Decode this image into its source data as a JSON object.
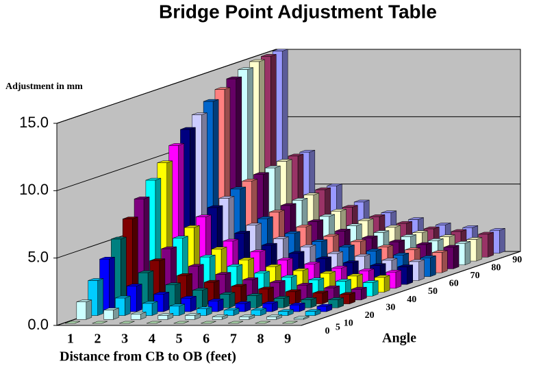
{
  "chart_data": {
    "type": "bar3d",
    "title": "Bridge Point Adjustment Table",
    "y_label": "Adjustment in mm",
    "x_label": "Distance from CB to OB (feet)",
    "depth_label": "Angle",
    "categories": [
      "1",
      "2",
      "3",
      "4",
      "5",
      "6",
      "7",
      "8",
      "9"
    ],
    "ylim": [
      0,
      15
    ],
    "yticks": [
      {
        "value": 0,
        "label": "0.0"
      },
      {
        "value": 5,
        "label": "5.0"
      },
      {
        "value": 10,
        "label": "10.0"
      },
      {
        "value": 15,
        "label": "15.0"
      }
    ],
    "grid": true,
    "series": [
      {
        "name": "0",
        "color": "#ccffcc",
        "values": [
          0,
          0,
          0,
          0,
          0,
          0,
          0,
          0,
          0
        ]
      },
      {
        "name": "5",
        "color": "#ccffff",
        "values": [
          1.3,
          0.7,
          0.4,
          0.3,
          0.3,
          0.2,
          0.2,
          0.2,
          0.1
        ]
      },
      {
        "name": "10",
        "color": "#00ccff",
        "values": [
          2.6,
          1.3,
          0.9,
          0.7,
          0.5,
          0.4,
          0.4,
          0.3,
          0.3
        ]
      },
      {
        "name": null,
        "color": "#0000ff",
        "values": [
          3.9,
          1.9,
          1.3,
          1.0,
          0.8,
          0.6,
          0.6,
          0.5,
          0.4
        ]
      },
      {
        "name": "20",
        "color": "#008080",
        "values": [
          5.1,
          2.6,
          1.7,
          1.3,
          1.0,
          0.9,
          0.7,
          0.6,
          0.6
        ]
      },
      {
        "name": null,
        "color": "#800000",
        "values": [
          6.3,
          3.2,
          2.1,
          1.6,
          1.3,
          1.1,
          0.9,
          0.8,
          0.7
        ]
      },
      {
        "name": "30",
        "color": "#800080",
        "values": [
          7.5,
          3.8,
          2.5,
          1.9,
          1.5,
          1.3,
          1.1,
          0.9,
          0.8
        ]
      },
      {
        "name": null,
        "color": "#00ffff",
        "values": [
          8.6,
          4.3,
          2.9,
          2.2,
          1.7,
          1.4,
          1.2,
          1.1,
          1.0
        ]
      },
      {
        "name": "40",
        "color": "#ffff00",
        "values": [
          9.6,
          4.8,
          3.2,
          2.4,
          1.9,
          1.6,
          1.4,
          1.2,
          1.1
        ]
      },
      {
        "name": null,
        "color": "#ff00ff",
        "values": [
          10.6,
          5.3,
          3.5,
          2.7,
          2.1,
          1.8,
          1.5,
          1.3,
          1.2
        ]
      },
      {
        "name": "50",
        "color": "#000080",
        "values": [
          11.5,
          5.7,
          3.8,
          2.9,
          2.3,
          1.9,
          1.6,
          1.4,
          1.3
        ]
      },
      {
        "name": null,
        "color": "#ccccff",
        "values": [
          12.3,
          6.1,
          4.1,
          3.1,
          2.5,
          2.0,
          1.8,
          1.5,
          1.4
        ]
      },
      {
        "name": "60",
        "color": "#0066cc",
        "values": [
          13.0,
          6.5,
          4.3,
          3.2,
          2.6,
          2.2,
          1.9,
          1.6,
          1.4
        ]
      },
      {
        "name": null,
        "color": "#ff8080",
        "values": [
          13.6,
          6.8,
          4.5,
          3.4,
          2.7,
          2.3,
          1.9,
          1.7,
          1.5
        ]
      },
      {
        "name": "70",
        "color": "#660066",
        "values": [
          14.1,
          7.0,
          4.7,
          3.5,
          2.8,
          2.3,
          2.0,
          1.8,
          1.6
        ]
      },
      {
        "name": null,
        "color": "#ccffff",
        "values": [
          14.5,
          7.2,
          4.8,
          3.6,
          2.9,
          2.4,
          2.1,
          1.8,
          1.6
        ]
      },
      {
        "name": "80",
        "color": "#ffffcc",
        "values": [
          14.8,
          7.4,
          4.9,
          3.7,
          3.0,
          2.5,
          2.1,
          1.8,
          1.6
        ]
      },
      {
        "name": null,
        "color": "#993366",
        "values": [
          14.9,
          7.5,
          5.0,
          3.7,
          3.0,
          2.5,
          2.1,
          1.9,
          1.7
        ]
      },
      {
        "name": "90",
        "color": "#9999ff",
        "values": [
          15.0,
          7.5,
          5.0,
          3.8,
          3.0,
          2.5,
          2.1,
          1.9,
          1.7
        ]
      }
    ]
  }
}
